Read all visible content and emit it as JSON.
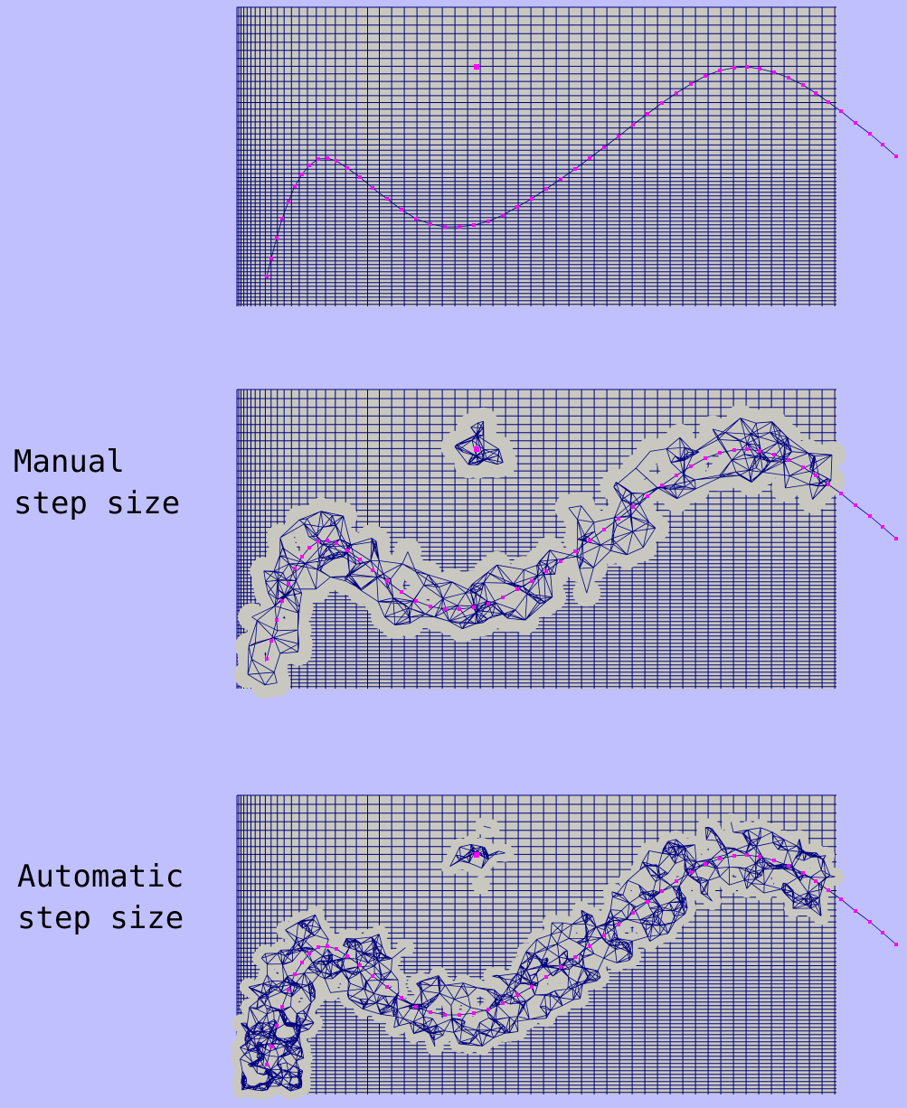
{
  "labels": {
    "manual_line1": "Manual",
    "manual_line2": "step size",
    "automatic_line1": "Automatic",
    "automatic_line2": "step size"
  },
  "colors": {
    "background": "#c0c0ff",
    "domain_fill": "#c8c8c0",
    "mesh_lines": "#000080",
    "markers": "#ff00ff"
  },
  "panels": [
    {
      "id": "original-mesh",
      "refinement": "none"
    },
    {
      "id": "manual-step-size",
      "refinement": "manual"
    },
    {
      "id": "automatic-step-size",
      "refinement": "automatic"
    }
  ]
}
